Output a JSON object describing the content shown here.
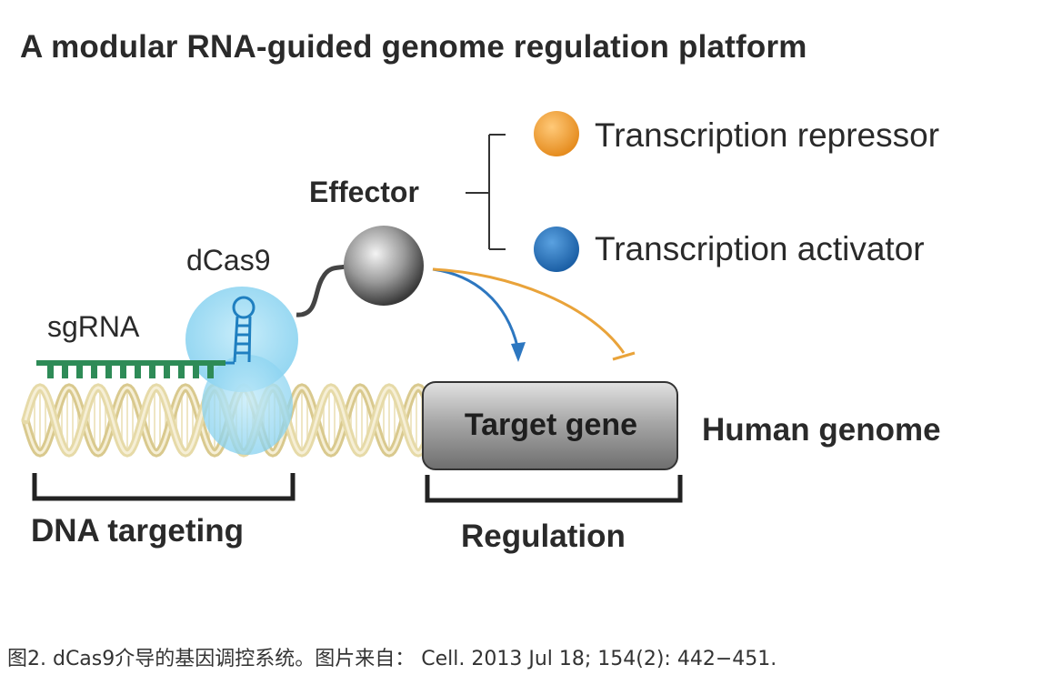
{
  "title": "A modular RNA-guided genome regulation platform",
  "labels": {
    "effector": "Effector",
    "dcas9": "dCas9",
    "sgrna": "sgRNA",
    "repressor": "Transcription repressor",
    "activator": "Transcription activator",
    "target_gene": "Target gene",
    "human_genome": "Human genome",
    "dna_targeting": "DNA targeting",
    "regulation": "Regulation"
  },
  "colors": {
    "repressor": "#f0a23c",
    "activator": "#2d77c0",
    "effector": "#7d7d7d",
    "dcas9": "#8ed6f0",
    "sgrna": "#2e8b57",
    "dna": "#e8dcae",
    "target_gene": "#9a9a9a"
  },
  "caption": "图2. dCas9介导的基因调控系统。图片来自：  Cell. 2013 Jul 18; 154(2): 442−451."
}
